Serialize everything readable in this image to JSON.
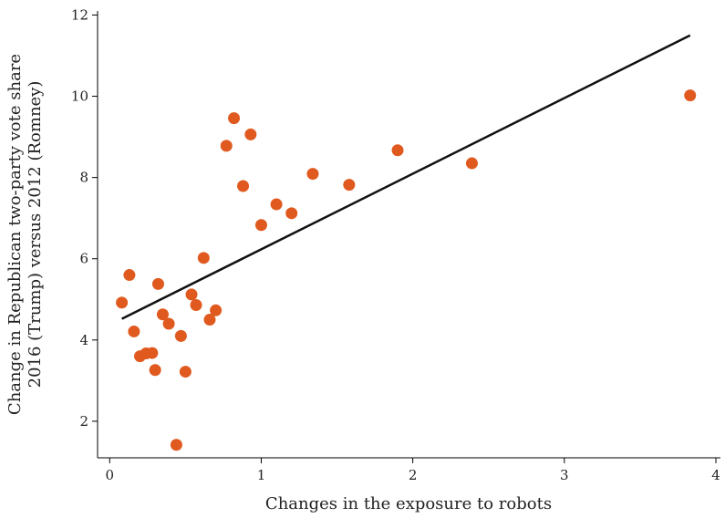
{
  "chart_data": {
    "type": "scatter",
    "title": "",
    "xlabel": "Changes in the exposure to robots",
    "ylabel_lines": [
      "Change in Republican two-party vote share",
      "2016 (Trump) versus 2012 (Romney)"
    ],
    "xlim": [
      -0.08,
      4.03
    ],
    "ylim": [
      1.1,
      12.1
    ],
    "x_ticks": [
      0,
      1,
      2,
      3,
      4
    ],
    "y_ticks": [
      2,
      4,
      6,
      8,
      10,
      12
    ],
    "grid": false,
    "point_color": "#e05a1f",
    "line_color": "#111111",
    "points": [
      {
        "x": 0.08,
        "y": 4.92
      },
      {
        "x": 0.13,
        "y": 5.6
      },
      {
        "x": 0.16,
        "y": 4.21
      },
      {
        "x": 0.2,
        "y": 3.6
      },
      {
        "x": 0.24,
        "y": 3.67
      },
      {
        "x": 0.28,
        "y": 3.68
      },
      {
        "x": 0.3,
        "y": 3.26
      },
      {
        "x": 0.32,
        "y": 5.38
      },
      {
        "x": 0.35,
        "y": 4.63
      },
      {
        "x": 0.39,
        "y": 4.4
      },
      {
        "x": 0.44,
        "y": 1.42
      },
      {
        "x": 0.47,
        "y": 4.1
      },
      {
        "x": 0.5,
        "y": 3.22
      },
      {
        "x": 0.54,
        "y": 5.12
      },
      {
        "x": 0.57,
        "y": 4.86
      },
      {
        "x": 0.62,
        "y": 6.02
      },
      {
        "x": 0.66,
        "y": 4.5
      },
      {
        "x": 0.7,
        "y": 4.73
      },
      {
        "x": 0.77,
        "y": 8.78
      },
      {
        "x": 0.82,
        "y": 9.46
      },
      {
        "x": 0.88,
        "y": 7.79
      },
      {
        "x": 0.93,
        "y": 9.06
      },
      {
        "x": 1.0,
        "y": 6.83
      },
      {
        "x": 1.1,
        "y": 7.34
      },
      {
        "x": 1.2,
        "y": 7.12
      },
      {
        "x": 1.34,
        "y": 8.09
      },
      {
        "x": 1.58,
        "y": 7.82
      },
      {
        "x": 1.9,
        "y": 8.67
      },
      {
        "x": 2.39,
        "y": 8.35
      },
      {
        "x": 3.83,
        "y": 10.02
      }
    ],
    "fit_line": {
      "x": [
        0.08,
        3.83
      ],
      "y": [
        4.52,
        11.5
      ]
    }
  }
}
